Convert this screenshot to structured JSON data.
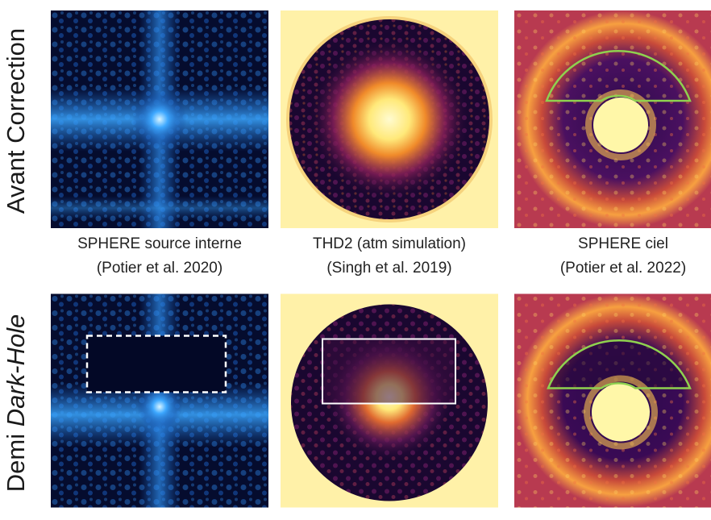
{
  "rows": [
    {
      "label": "Avant Correction"
    },
    {
      "label_prefix": "Demi ",
      "label_emph": "Dark-Hole"
    }
  ],
  "captions": [
    {
      "line1": "SPHERE source interne",
      "line2": "(Potier et al. 2020)"
    },
    {
      "line1": "THD2 (atm simulation)",
      "line2": "(Singh et al. 2019)"
    },
    {
      "line1": "SPHERE ciel",
      "line2": "(Potier et al. 2022)"
    }
  ],
  "colors": {
    "blue_dark": "#050c2e",
    "blue_bright": "#3da8ff",
    "inferno_dark": "#1a0730",
    "inferno_mid": "#a83060",
    "inferno_bright": "#fff7a8",
    "annulus_line": "#8fd14f",
    "box_line": "#ffffff"
  },
  "panels": [
    {
      "name": "sphere-internal-before",
      "colormap": "blue"
    },
    {
      "name": "thd2-before",
      "colormap": "inferno"
    },
    {
      "name": "sphere-sky-before",
      "colormap": "inferno"
    },
    {
      "name": "sphere-internal-darkhole",
      "colormap": "blue"
    },
    {
      "name": "thd2-darkhole",
      "colormap": "inferno"
    },
    {
      "name": "sphere-sky-darkhole",
      "colormap": "inferno"
    }
  ]
}
